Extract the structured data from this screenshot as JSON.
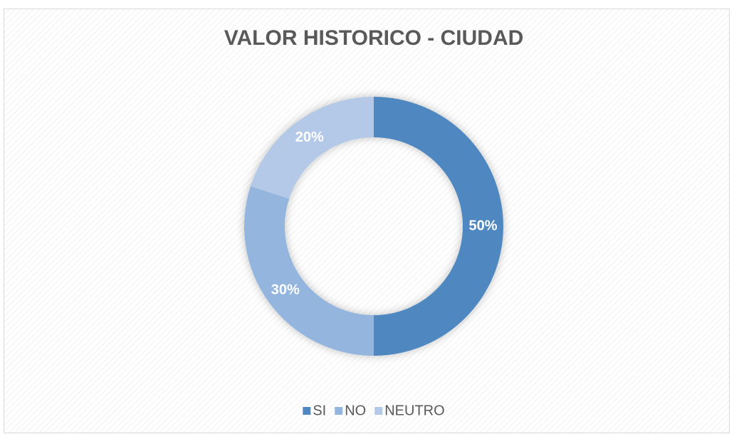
{
  "chart_data": {
    "type": "donut",
    "title": "VALOR HISTORICO - CIUDAD",
    "categories": [
      "SI",
      "NO",
      "NEUTRO"
    ],
    "values": [
      50,
      30,
      20
    ],
    "value_labels": [
      "50%",
      "30%",
      "20%"
    ],
    "colors": [
      "#4f87c0",
      "#94b5de",
      "#b3c9e7"
    ],
    "legend": "bottom"
  }
}
